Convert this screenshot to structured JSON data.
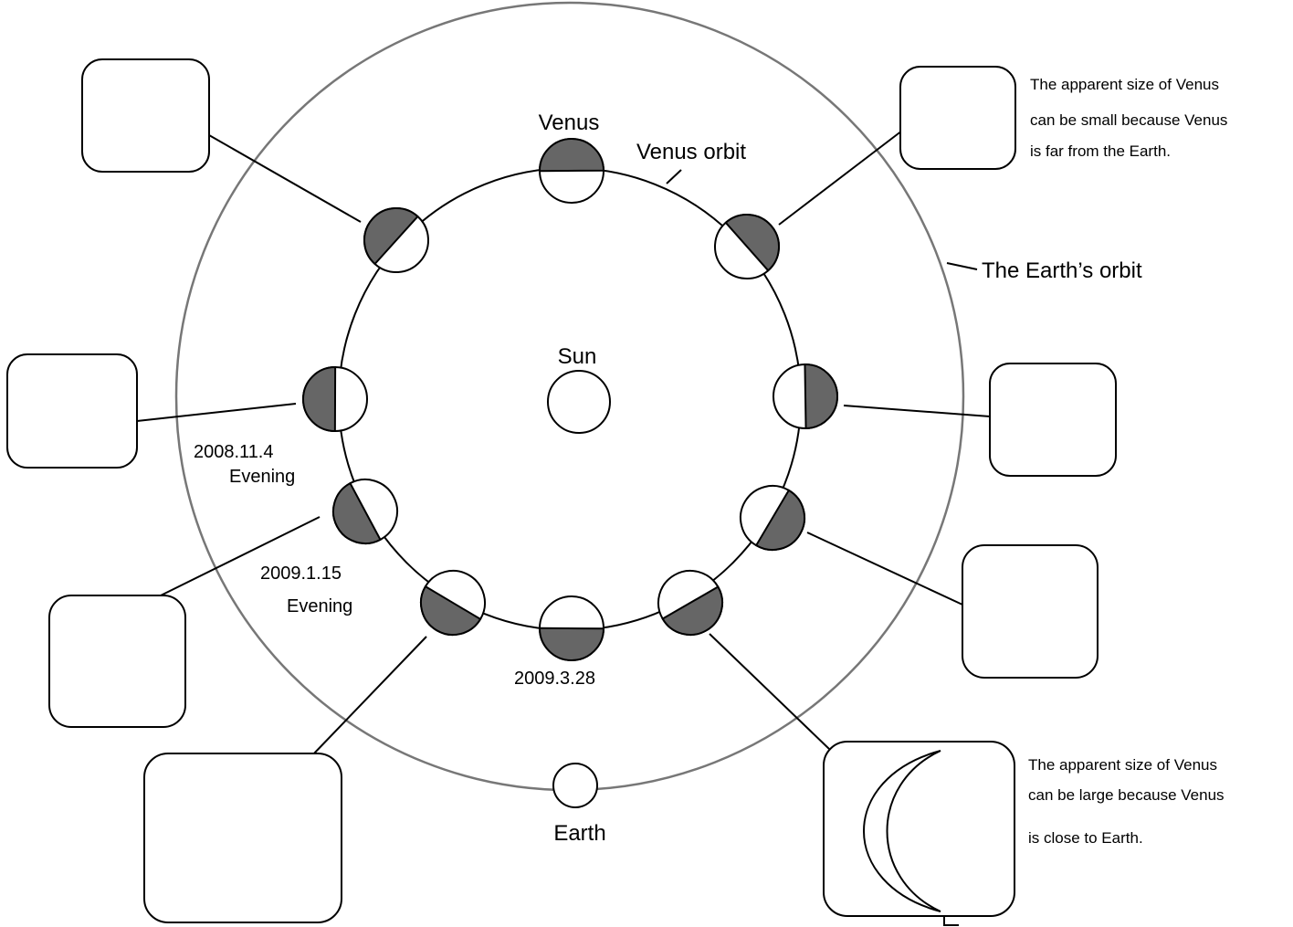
{
  "labels": {
    "venus": "Venus",
    "venus_orbit": "Venus orbit",
    "earth_orbit": "The Earth’s orbit",
    "sun": "Sun",
    "earth": "Earth"
  },
  "dates": [
    {
      "date": "2008.11.4",
      "time": "Evening"
    },
    {
      "date": "2009.1.15",
      "time": "Evening"
    },
    {
      "date": "2009.3.28"
    }
  ],
  "notes": [
    [
      "The apparent size of  Venus",
      "can be small because  Venus",
      "is far from the Earth."
    ],
    [
      "The apparent size of  Venus",
      "can be large because  Venus",
      "is close to Earth."
    ]
  ]
}
